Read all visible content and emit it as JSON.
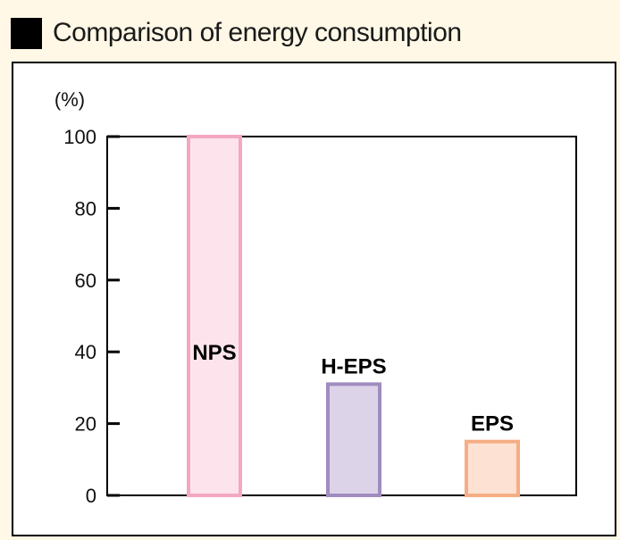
{
  "title": "Comparison of energy consumption",
  "colors": {
    "background": "#fff8e6",
    "frame": "#ffffff"
  },
  "chart_data": {
    "type": "bar",
    "title": "Comparison of energy consumption",
    "ylabel": "(%)",
    "xlabel": "",
    "ylim": [
      0,
      100
    ],
    "yticks": [
      0,
      20,
      40,
      60,
      80,
      100
    ],
    "categories": [
      "NPS",
      "H-EPS",
      "EPS"
    ],
    "values": [
      100,
      31,
      15
    ],
    "bar_fills": [
      "#fde4ec",
      "#dcd3e9",
      "#fde2d3"
    ],
    "bar_strokes": [
      "#f4a7c2",
      "#a08cbf",
      "#f5ad84"
    ],
    "grid": false,
    "legend": "none"
  }
}
